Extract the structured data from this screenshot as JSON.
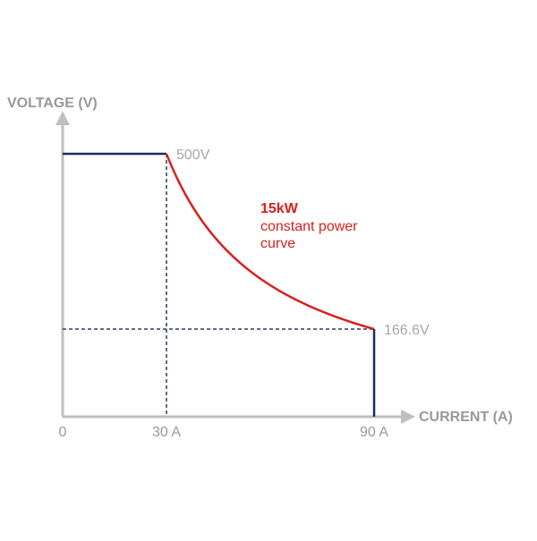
{
  "colors": {
    "axis": "#bfbfbf",
    "axis_text": "#999999",
    "value_label": "#a6a6a6",
    "tick_label": "#999999",
    "series_line": "#1f2b5b",
    "curve": "#d9201c",
    "guide_line": "#2a3a6a",
    "background": "#ffffff"
  },
  "chart_data": {
    "type": "line",
    "title": "",
    "ylabel": "VOLTAGE (V)",
    "xlabel": "CURRENT (A)",
    "origin_label": "0",
    "xlim": [
      0,
      90
    ],
    "ylim": [
      0,
      600
    ],
    "x_ticks": [
      {
        "value": 30,
        "label": "30 A"
      },
      {
        "value": 90,
        "label": "90 A"
      }
    ],
    "value_labels": [
      {
        "x": 30,
        "y": 500,
        "label": "500V"
      },
      {
        "x": 90,
        "y": 166.6,
        "label": "166.6V"
      }
    ],
    "series": [
      {
        "points": [
          [
            0,
            500
          ],
          [
            30,
            500
          ]
        ]
      },
      {
        "constant_power_kw": 15,
        "x_start": 30,
        "x_end": 90
      },
      {
        "points": [
          [
            90,
            166.6
          ],
          [
            90,
            0
          ]
        ]
      }
    ],
    "guides": [
      {
        "from": [
          30,
          500
        ],
        "to": [
          30,
          0
        ]
      },
      {
        "from": [
          0,
          166.6
        ],
        "to": [
          90,
          166.6
        ]
      }
    ],
    "annotation": {
      "title": "15kW",
      "line1": "constant power",
      "line2": "curve"
    },
    "grid": false
  }
}
